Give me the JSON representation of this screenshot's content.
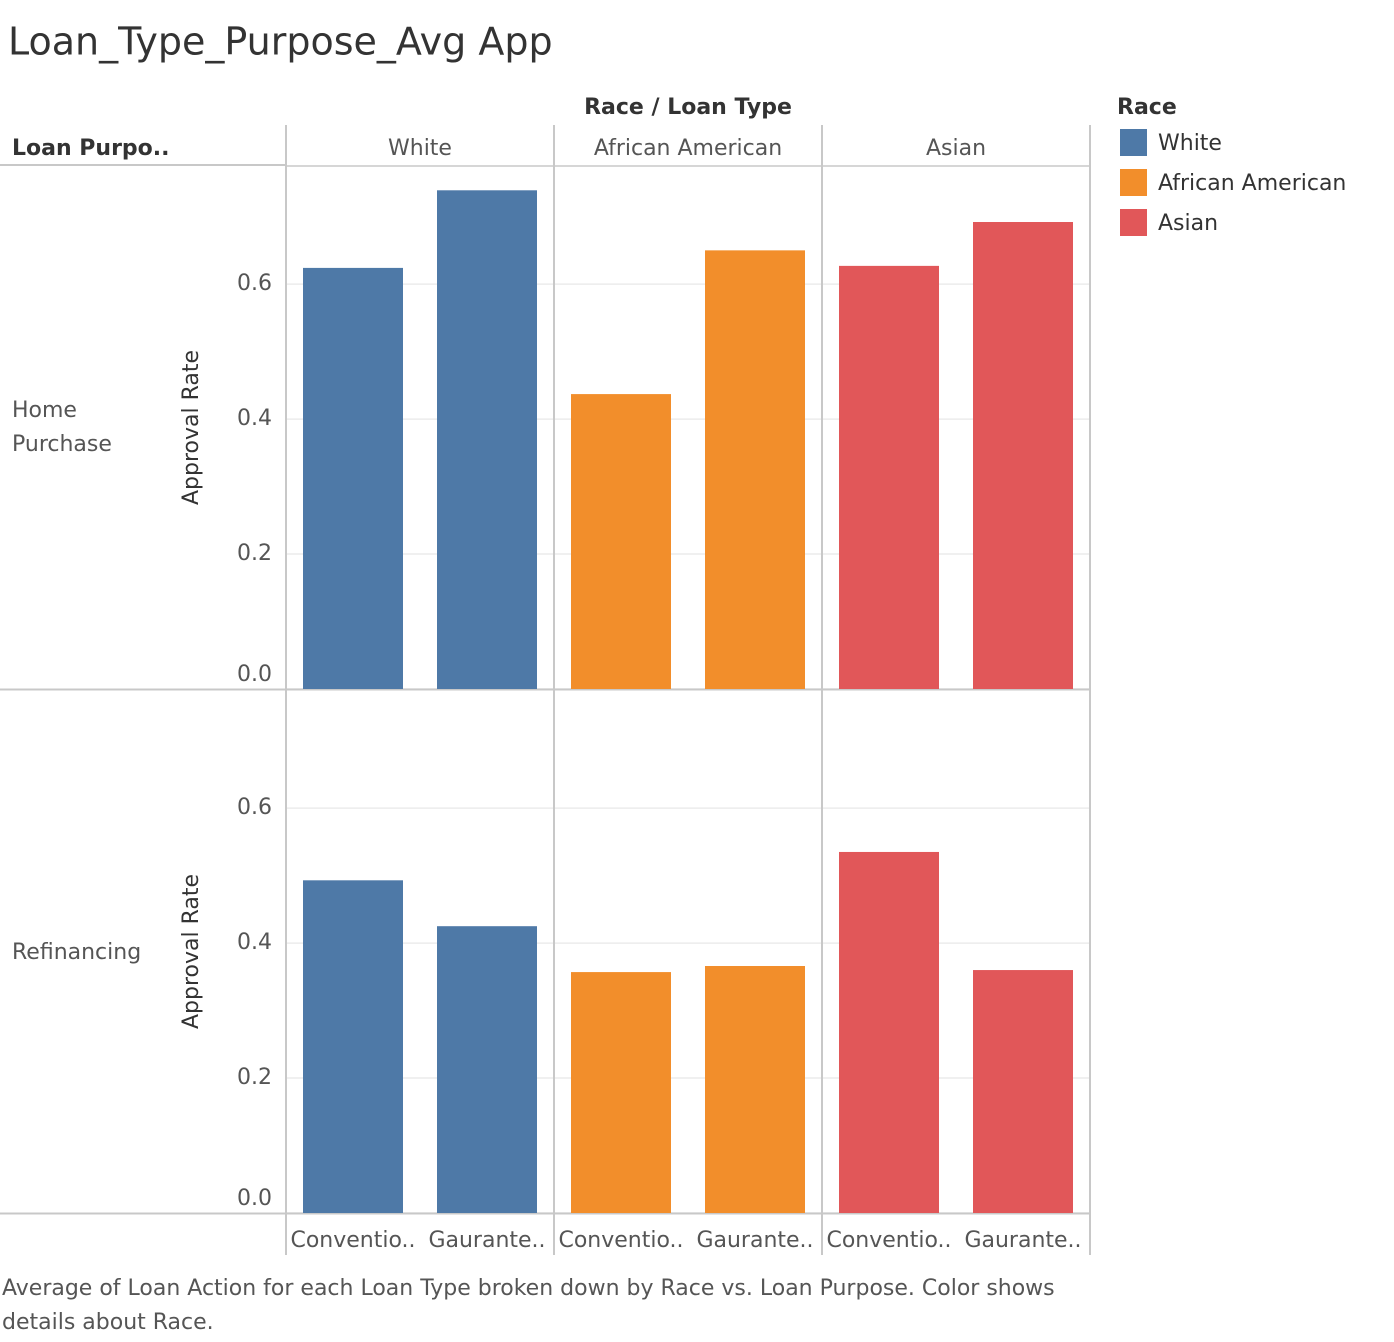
{
  "chart_data": {
    "type": "bar",
    "title": "Loan_Type_Purpose_Avg App",
    "column_header": "Race / Loan Type",
    "row_header": "Loan Purpo..",
    "y_label": "Approval Rate",
    "legend_title": "Race",
    "caption": "Average of Loan Action for each Loan Type broken down by Race vs. Loan Purpose.  Color shows details about Race.",
    "rows": [
      "Home Purchase",
      "Refinancing"
    ],
    "categories": [
      "Conventio..",
      "Gaurante.."
    ],
    "series": [
      {
        "name": "White",
        "color": "#4e79a7",
        "values": [
          [
            0.624,
            0.739
          ],
          [
            0.493,
            0.425
          ]
        ]
      },
      {
        "name": "African American",
        "color": "#f28e2b",
        "values": [
          [
            0.437,
            0.65
          ],
          [
            0.357,
            0.366
          ]
        ]
      },
      {
        "name": "Asian",
        "color": "#e15759",
        "values": [
          [
            0.627,
            0.692
          ],
          [
            0.535,
            0.36
          ]
        ]
      }
    ],
    "ylim": [
      0,
      0.775
    ],
    "yticks": [
      {
        "value": 0,
        "label": "0.0"
      },
      {
        "value": 0.2,
        "label": "0.2"
      },
      {
        "value": 0.4,
        "label": "0.4"
      },
      {
        "value": 0.6,
        "label": "0.6"
      }
    ],
    "grid": true
  }
}
